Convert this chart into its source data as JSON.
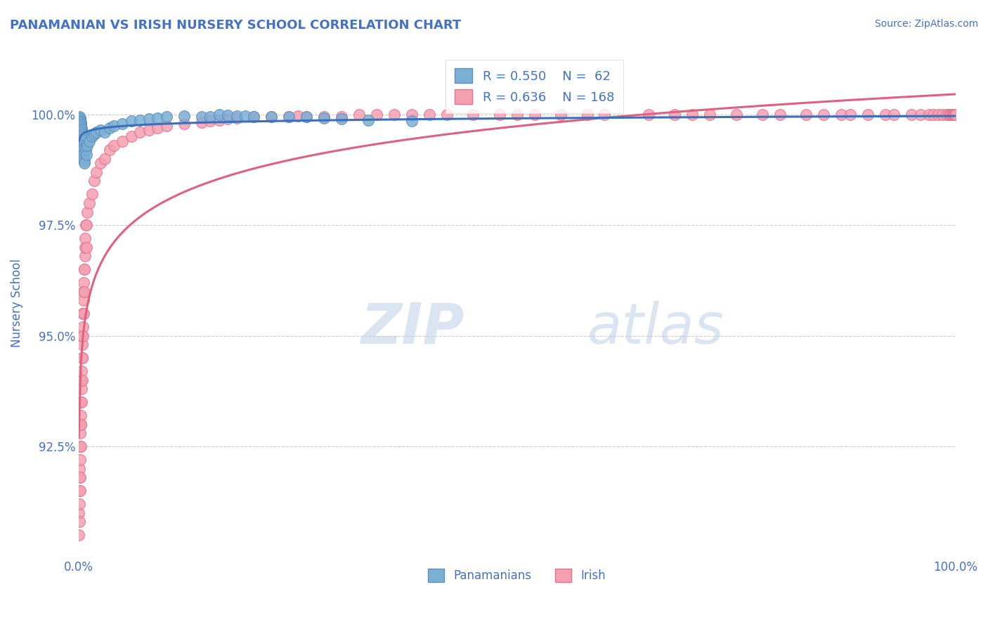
{
  "title": "PANAMANIAN VS IRISH NURSERY SCHOOL CORRELATION CHART",
  "source_text": "Source: ZipAtlas.com",
  "ylabel": "Nursery School",
  "x_tick_labels": [
    "0.0%",
    "100.0%"
  ],
  "y_tick_labels": [
    "92.5%",
    "95.0%",
    "97.5%",
    "100.0%"
  ],
  "y_tick_values": [
    92.5,
    95.0,
    97.5,
    100.0
  ],
  "x_lim": [
    0.0,
    100.0
  ],
  "y_lim": [
    90.0,
    101.5
  ],
  "panamanian_color": "#7bafd4",
  "irish_color": "#f4a0b0",
  "panamanian_edge": "#5a8fbf",
  "irish_edge": "#e87090",
  "trend_blue": "#3a6fbd",
  "trend_pink": "#e06080",
  "R_panamanian": 0.55,
  "N_panamanian": 62,
  "R_irish": 0.636,
  "N_irish": 168,
  "title_color": "#4472c4",
  "source_color": "#4472c4",
  "axis_label_color": "#4472c4",
  "tick_color": "#4472c4",
  "legend_label1": "Panamanians",
  "legend_label2": "Irish",
  "background_color": "#ffffff",
  "panamanian_x": [
    0.05,
    0.08,
    0.1,
    0.12,
    0.14,
    0.15,
    0.17,
    0.18,
    0.2,
    0.22,
    0.25,
    0.27,
    0.28,
    0.3,
    0.32,
    0.35,
    0.37,
    0.38,
    0.4,
    0.42,
    0.43,
    0.45,
    0.47,
    0.5,
    0.52,
    0.55,
    0.57,
    0.6,
    0.62,
    0.65,
    0.8,
    0.85,
    1.0,
    1.2,
    1.5,
    1.8,
    2.0,
    2.5,
    3.0,
    3.5,
    4.0,
    5.0,
    6.0,
    7.0,
    8.0,
    9.0,
    10.0,
    12.0,
    14.0,
    15.0,
    16.0,
    17.0,
    18.0,
    19.0,
    20.0,
    22.0,
    24.0,
    26.0,
    28.0,
    30.0,
    33.0,
    38.0
  ],
  "panamanian_y": [
    99.8,
    99.9,
    99.95,
    99.85,
    99.9,
    99.88,
    99.9,
    99.92,
    99.85,
    99.8,
    99.82,
    99.78,
    99.75,
    99.7,
    99.65,
    99.6,
    99.55,
    99.5,
    99.4,
    99.45,
    99.3,
    99.25,
    99.2,
    99.15,
    99.1,
    99.1,
    99.0,
    99.0,
    98.95,
    98.9,
    99.2,
    99.1,
    99.3,
    99.4,
    99.5,
    99.55,
    99.6,
    99.65,
    99.6,
    99.7,
    99.75,
    99.8,
    99.85,
    99.88,
    99.9,
    99.92,
    99.95,
    99.97,
    99.95,
    99.95,
    100.0,
    99.98,
    99.97,
    99.96,
    99.95,
    99.95,
    99.95,
    99.95,
    99.92,
    99.9,
    99.88,
    99.85
  ],
  "irish_x": [
    0.02,
    0.03,
    0.05,
    0.07,
    0.08,
    0.1,
    0.12,
    0.13,
    0.15,
    0.17,
    0.18,
    0.2,
    0.22,
    0.23,
    0.25,
    0.27,
    0.28,
    0.3,
    0.32,
    0.33,
    0.35,
    0.37,
    0.38,
    0.4,
    0.42,
    0.43,
    0.45,
    0.47,
    0.48,
    0.5,
    0.52,
    0.55,
    0.57,
    0.6,
    0.62,
    0.65,
    0.67,
    0.7,
    0.72,
    0.75,
    0.8,
    0.85,
    0.9,
    1.0,
    1.2,
    1.5,
    1.8,
    2.0,
    2.5,
    3.0,
    3.5,
    4.0,
    5.0,
    6.0,
    7.0,
    8.0,
    9.0,
    10.0,
    12.0,
    14.0,
    15.0,
    16.0,
    17.0,
    18.0,
    20.0,
    22.0,
    24.0,
    25.0,
    26.0,
    28.0,
    30.0,
    32.0,
    34.0,
    36.0,
    38.0,
    40.0,
    42.0,
    45.0,
    48.0,
    50.0,
    52.0,
    55.0,
    58.0,
    60.0,
    65.0,
    68.0,
    70.0,
    72.0,
    75.0,
    78.0,
    80.0,
    83.0,
    85.0,
    87.0,
    88.0,
    90.0,
    92.0,
    93.0,
    95.0,
    96.0,
    97.0,
    97.5,
    98.0,
    98.5,
    99.0,
    99.2,
    99.4,
    99.5,
    99.6,
    99.7,
    99.8,
    99.9,
    100.0,
    100.0,
    100.0,
    100.0,
    100.0,
    100.0,
    100.0,
    100.0,
    100.0,
    100.0,
    100.0,
    100.0,
    100.0,
    100.0,
    100.0,
    100.0,
    100.0,
    100.0,
    100.0,
    100.0,
    100.0,
    100.0,
    100.0,
    100.0,
    100.0,
    100.0,
    100.0,
    100.0,
    100.0,
    100.0,
    100.0,
    100.0,
    100.0,
    100.0,
    100.0,
    100.0,
    100.0,
    100.0,
    100.0,
    100.0,
    100.0,
    100.0,
    100.0,
    100.0,
    100.0,
    100.0,
    100.0,
    100.0,
    100.0,
    100.0,
    100.0,
    100.0
  ],
  "irish_y": [
    91.0,
    90.5,
    91.5,
    90.8,
    91.2,
    91.8,
    92.0,
    91.5,
    92.5,
    92.2,
    91.8,
    92.8,
    93.0,
    92.5,
    93.2,
    93.5,
    93.0,
    94.0,
    93.8,
    93.5,
    94.2,
    94.5,
    94.0,
    94.8,
    95.0,
    94.5,
    95.2,
    95.5,
    95.0,
    95.5,
    96.0,
    95.8,
    95.5,
    96.2,
    96.5,
    96.0,
    96.5,
    96.8,
    97.0,
    97.2,
    97.5,
    97.0,
    97.5,
    97.8,
    98.0,
    98.2,
    98.5,
    98.7,
    98.9,
    99.0,
    99.2,
    99.3,
    99.4,
    99.5,
    99.6,
    99.65,
    99.7,
    99.75,
    99.8,
    99.82,
    99.85,
    99.88,
    99.9,
    99.92,
    99.95,
    99.95,
    99.95,
    99.97,
    99.95,
    99.95,
    99.95,
    100.0,
    100.0,
    100.0,
    100.0,
    100.0,
    100.0,
    100.0,
    100.0,
    100.0,
    100.0,
    100.0,
    100.0,
    100.0,
    100.0,
    100.0,
    100.0,
    100.0,
    100.0,
    100.0,
    100.0,
    100.0,
    100.0,
    100.0,
    100.0,
    100.0,
    100.0,
    100.0,
    100.0,
    100.0,
    100.0,
    100.0,
    100.0,
    100.0,
    100.0,
    100.0,
    100.0,
    100.0,
    100.0,
    100.0,
    100.0,
    100.0,
    100.0,
    100.0,
    100.0,
    100.0,
    100.0,
    100.0,
    100.0,
    100.0,
    100.0,
    100.0,
    100.0,
    100.0,
    100.0,
    100.0,
    100.0,
    100.0,
    100.0,
    100.0,
    100.0,
    100.0,
    100.0,
    100.0,
    100.0,
    100.0,
    100.0,
    100.0,
    100.0,
    100.0,
    100.0,
    100.0,
    100.0,
    100.0,
    100.0,
    100.0,
    100.0,
    100.0,
    100.0,
    100.0,
    100.0,
    100.0,
    100.0,
    100.0,
    100.0,
    100.0,
    100.0,
    100.0,
    100.0,
    100.0,
    100.0,
    100.0,
    100.0,
    100.0,
    100.0,
    100.0,
    100.0,
    100.0
  ]
}
